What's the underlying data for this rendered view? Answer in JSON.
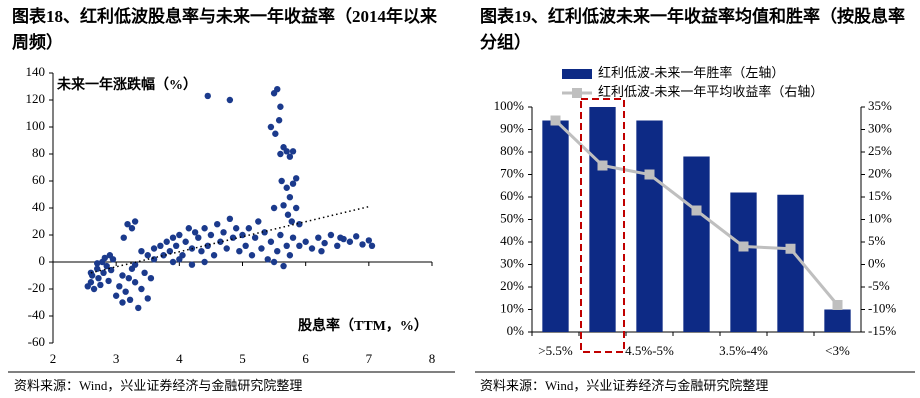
{
  "chart_data": [
    {
      "type": "scatter",
      "title": "图表18、红利低波股息率与未来一年收益率（2014年以来周频）",
      "y_label": "未来一年涨跌幅（%）",
      "x_label": "股息率（TTM，%）",
      "source": "资料来源：Wind，兴业证券经济与金融研究院整理",
      "color": "#1b3a8c",
      "xlim": [
        2,
        8
      ],
      "xticks": [
        2,
        3,
        4,
        5,
        6,
        7,
        8
      ],
      "ylim": [
        -60,
        140
      ],
      "yticks": [
        -60,
        -40,
        -20,
        0,
        20,
        40,
        60,
        80,
        100,
        120,
        140
      ],
      "x": [
        2.55,
        2.6,
        2.62,
        2.65,
        2.7,
        2.72,
        2.75,
        2.78,
        2.8,
        2.82,
        2.85,
        2.88,
        2.9,
        2.92,
        2.95,
        2.7,
        2.6,
        3.0,
        3.05,
        3.1,
        3.15,
        3.2,
        3.22,
        3.25,
        3.3,
        3.35,
        3.4,
        3.45,
        3.5,
        3.1,
        3.3,
        3.55,
        3.6,
        3.12,
        3.18,
        3.25,
        3.3,
        3.4,
        3.5,
        3.6,
        3.7,
        3.75,
        3.8,
        3.85,
        3.9,
        3.95,
        4.0,
        4.05,
        4.1,
        4.15,
        4.2,
        4.25,
        4.3,
        4.35,
        4.4,
        4.45,
        4.5,
        4.55,
        4.6,
        4.65,
        4.7,
        4.75,
        4.8,
        4.85,
        4.9,
        4.95,
        5.0,
        3.9,
        4.0,
        4.2,
        4.4,
        5.05,
        5.1,
        5.15,
        5.2,
        5.25,
        5.3,
        5.35,
        5.4,
        5.45,
        5.5,
        5.55,
        5.6,
        5.65,
        5.7,
        5.75,
        5.8,
        5.45,
        5.5,
        5.55,
        5.6,
        5.58,
        5.52,
        5.6,
        5.65,
        5.7,
        5.75,
        5.8,
        5.62,
        5.7,
        5.75,
        5.8,
        5.85,
        5.65,
        5.72,
        5.78,
        5.85,
        5.9,
        5.5,
        5.9,
        6.0,
        6.1,
        6.2,
        6.3,
        6.4,
        6.5,
        6.6,
        6.7,
        6.8,
        6.9,
        7.0,
        7.05,
        6.55,
        6.25,
        4.45,
        4.8
      ],
      "y": [
        -18,
        -15,
        -10,
        -20,
        -5,
        -12,
        -17,
        0,
        -8,
        3,
        -3,
        -14,
        5,
        -6,
        2,
        -1,
        -8,
        -25,
        -18,
        -30,
        -22,
        -12,
        -28,
        -5,
        -15,
        -34,
        -20,
        -8,
        -27,
        -10,
        -2,
        -12,
        2,
        18,
        28,
        25,
        30,
        8,
        5,
        10,
        12,
        5,
        15,
        8,
        18,
        12,
        20,
        5,
        15,
        25,
        10,
        22,
        18,
        8,
        25,
        12,
        20,
        5,
        28,
        15,
        22,
        10,
        32,
        18,
        25,
        8,
        20,
        0,
        2,
        -2,
        0,
        12,
        25,
        5,
        18,
        30,
        10,
        22,
        2,
        15,
        0,
        8,
        20,
        -3,
        12,
        5,
        18,
        100,
        125,
        128,
        115,
        105,
        95,
        80,
        85,
        82,
        78,
        82,
        60,
        55,
        48,
        58,
        62,
        42,
        35,
        30,
        40,
        28,
        40,
        12,
        15,
        10,
        18,
        14,
        20,
        12,
        17,
        15,
        19,
        13,
        16,
        12,
        18,
        8,
        123,
        120
      ],
      "trendline": {
        "x": [
          2.6,
          7
        ],
        "y": [
          -8,
          41
        ]
      }
    },
    {
      "type": "bar",
      "title": "图表19、红利低波未来一年收益率均值和胜率（按股息率分组）",
      "source": "资料来源：Wind，兴业证券经济与金融研究院整理",
      "categories": [
        ">5.5%",
        null,
        "4.5%-5%",
        null,
        "3.5%-4%",
        null,
        "<3%"
      ],
      "series": [
        {
          "name": "红利低波-未来一年胜率（左轴）",
          "type": "bar",
          "color": "#0d2a85",
          "values": [
            94,
            100,
            94,
            78,
            62,
            61,
            10
          ]
        },
        {
          "name": "红利低波-未来一年平均收益率（右轴）",
          "type": "line",
          "axis": "y2",
          "color": "#bfbfbf",
          "values": [
            32,
            22,
            20,
            12,
            4,
            3.5,
            -9
          ]
        }
      ],
      "ylim": [
        0,
        100
      ],
      "yticks": [
        {
          "value": 0,
          "label": "0%"
        },
        {
          "value": 10,
          "label": "10%"
        },
        {
          "value": 20,
          "label": "20%"
        },
        {
          "value": 30,
          "label": "30%"
        },
        {
          "value": 40,
          "label": "40%"
        },
        {
          "value": 50,
          "label": "50%"
        },
        {
          "value": 60,
          "label": "60%"
        },
        {
          "value": 70,
          "label": "70%"
        },
        {
          "value": 80,
          "label": "80%"
        },
        {
          "value": 90,
          "label": "90%"
        },
        {
          "value": 100,
          "label": "100%"
        }
      ],
      "y2lim": [
        -15,
        35
      ],
      "y2ticks": [
        {
          "value": -15,
          "label": "-15%"
        },
        {
          "value": -10,
          "label": "-10%"
        },
        {
          "value": -5,
          "label": "-5%"
        },
        {
          "value": 0,
          "label": "0%"
        },
        {
          "value": 5,
          "label": "5%"
        },
        {
          "value": 10,
          "label": "10%"
        },
        {
          "value": 15,
          "label": "15%"
        },
        {
          "value": 20,
          "label": "20%"
        },
        {
          "value": 25,
          "label": "25%"
        },
        {
          "value": 30,
          "label": "30%"
        },
        {
          "value": 35,
          "label": "35%"
        }
      ]
    }
  ]
}
